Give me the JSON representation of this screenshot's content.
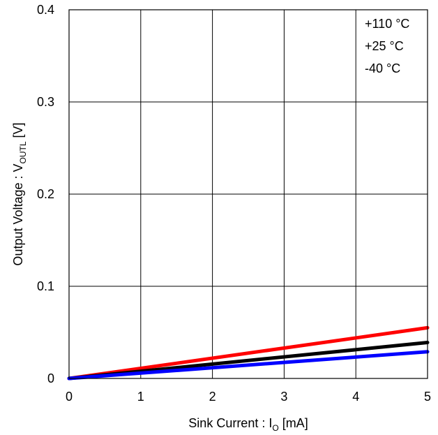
{
  "chart_data": {
    "type": "line",
    "xlabel": {
      "main": "Sink Current : I",
      "sub": "O",
      "tail": " [mA]"
    },
    "ylabel": {
      "main": "Output Voltage : V",
      "sub": "OUTL",
      "tail": " [V]"
    },
    "xlim": [
      0,
      5
    ],
    "ylim": [
      0,
      0.4
    ],
    "x_ticks": [
      "0",
      "1",
      "2",
      "3",
      "4",
      "5"
    ],
    "y_ticks": [
      "0",
      "0.1",
      "0.2",
      "0.3",
      "0.4"
    ],
    "grid": true,
    "legend_position": "top-right",
    "series": [
      {
        "name": "+110 °C",
        "color": "#ff0000",
        "x": [
          0,
          5
        ],
        "y": [
          0,
          0.055
        ]
      },
      {
        "name": "+25 °C",
        "color": "#000000",
        "x": [
          0,
          5
        ],
        "y": [
          0,
          0.039
        ]
      },
      {
        "name": "-40 °C",
        "color": "#0000ff",
        "x": [
          0,
          5
        ],
        "y": [
          0,
          0.029
        ]
      }
    ]
  }
}
